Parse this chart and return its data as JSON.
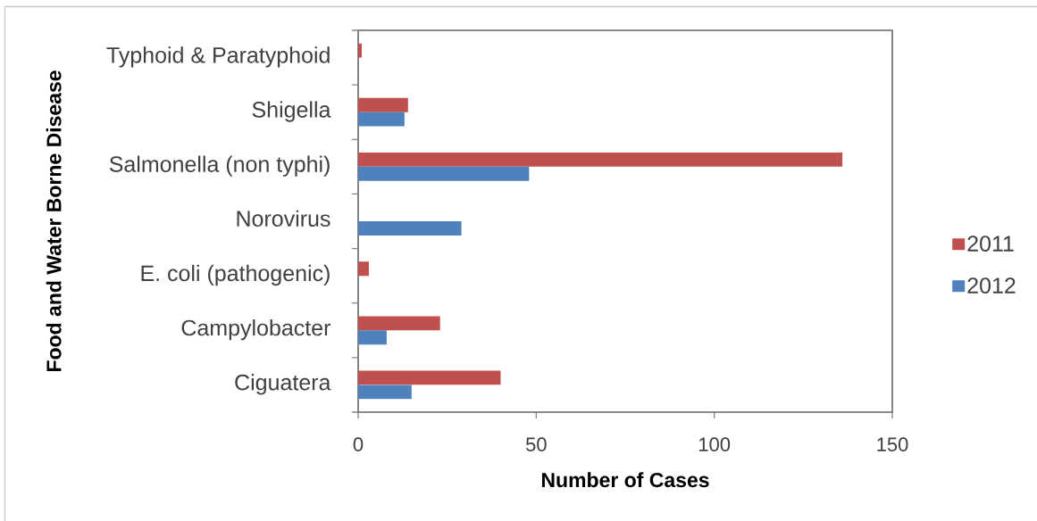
{
  "chart_data": {
    "type": "bar",
    "orientation": "horizontal",
    "xlabel": "Number of Cases",
    "ylabel": "Food and Water Borne Disease",
    "categories": [
      "Typhoid & Paratyphoid",
      "Shigella",
      "Salmonella (non typhi)",
      "Norovirus",
      "E. coli (pathogenic)",
      "Campylobacter",
      "Ciguatera"
    ],
    "series": [
      {
        "name": "2011",
        "color": "#c0504d",
        "values": [
          1,
          14,
          136,
          0,
          3,
          23,
          40
        ]
      },
      {
        "name": "2012",
        "color": "#4f81bd",
        "values": [
          0,
          13,
          48,
          29,
          0,
          8,
          15
        ]
      }
    ],
    "xlim": [
      0,
      150
    ],
    "xticks": [
      0,
      50,
      100,
      150
    ],
    "legend": "right"
  }
}
